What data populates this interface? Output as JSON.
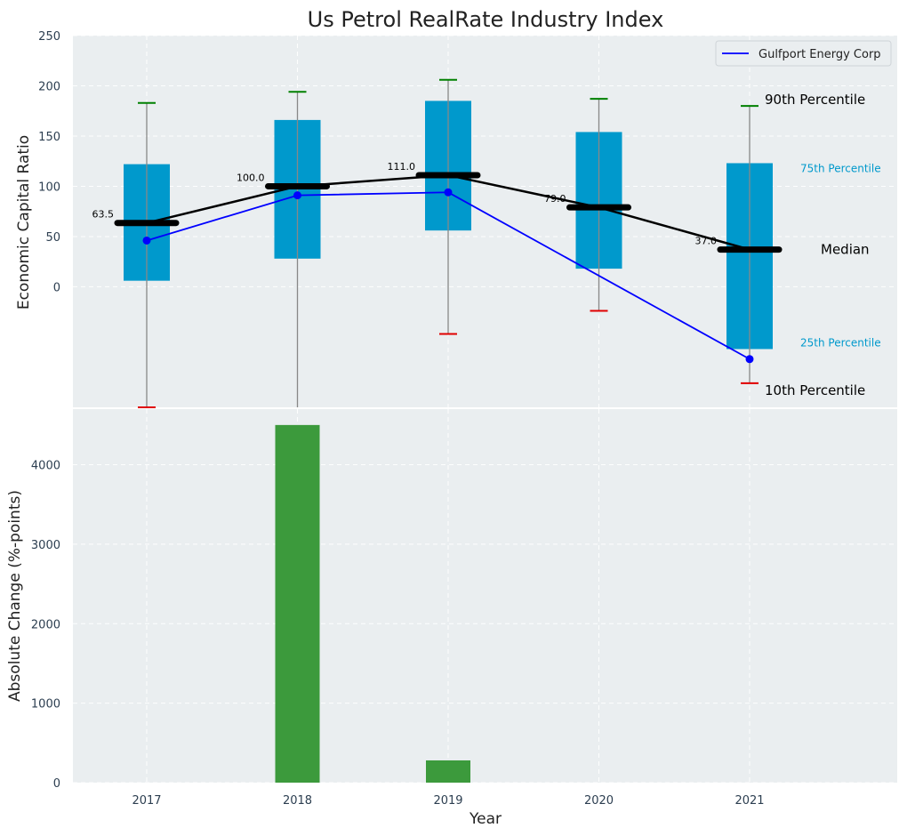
{
  "chart_data": [
    {
      "type": "box",
      "title": "Us Petrol RealRate Industry Index",
      "ylabel": "Economic Capital Ratio",
      "ylim": [
        -120,
        250
      ],
      "yticks": [
        0,
        50,
        100,
        150,
        200,
        250
      ],
      "categories": [
        "2017",
        "2018",
        "2019",
        "2020",
        "2021"
      ],
      "p10": [
        -121,
        -121,
        -47,
        -24,
        -96
      ],
      "p25": [
        6,
        28,
        56,
        18,
        -62
      ],
      "median": [
        63.5,
        100.0,
        111.0,
        79.0,
        37.0
      ],
      "median_labels": [
        "63.5",
        "100.0",
        "111.0",
        "79.0",
        "37.0"
      ],
      "p75": [
        122,
        166,
        185,
        154,
        123
      ],
      "p90": [
        183,
        194,
        206,
        187,
        180
      ],
      "series": [
        {
          "name": "Gulfport Energy Corp",
          "values": [
            46,
            91,
            94,
            null,
            -72
          ],
          "color": "#0000ff"
        }
      ],
      "legend": {
        "entries": [
          "Gulfport Energy Corp"
        ],
        "placement": "top-right"
      },
      "annotations": {
        "p90": "90th Percentile",
        "p75": "75th Percentile",
        "median": "Median",
        "p25": "25th Percentile",
        "p10": "10th Percentile"
      },
      "colors": {
        "box": "#0099cc",
        "median": "#000000",
        "p90_cap": "#008000",
        "p10_cap": "#e00000",
        "whisker": "#888888"
      }
    },
    {
      "type": "bar",
      "xlabel": "Year",
      "ylabel": "Absolute Change (%-points)",
      "categories": [
        "2017",
        "2018",
        "2019",
        "2020",
        "2021"
      ],
      "values": [
        0,
        4500,
        280,
        0,
        0
      ],
      "ylim": [
        0,
        4700
      ],
      "yticks": [
        0,
        1000,
        2000,
        3000,
        4000
      ],
      "color": "#3c9a3c"
    }
  ]
}
